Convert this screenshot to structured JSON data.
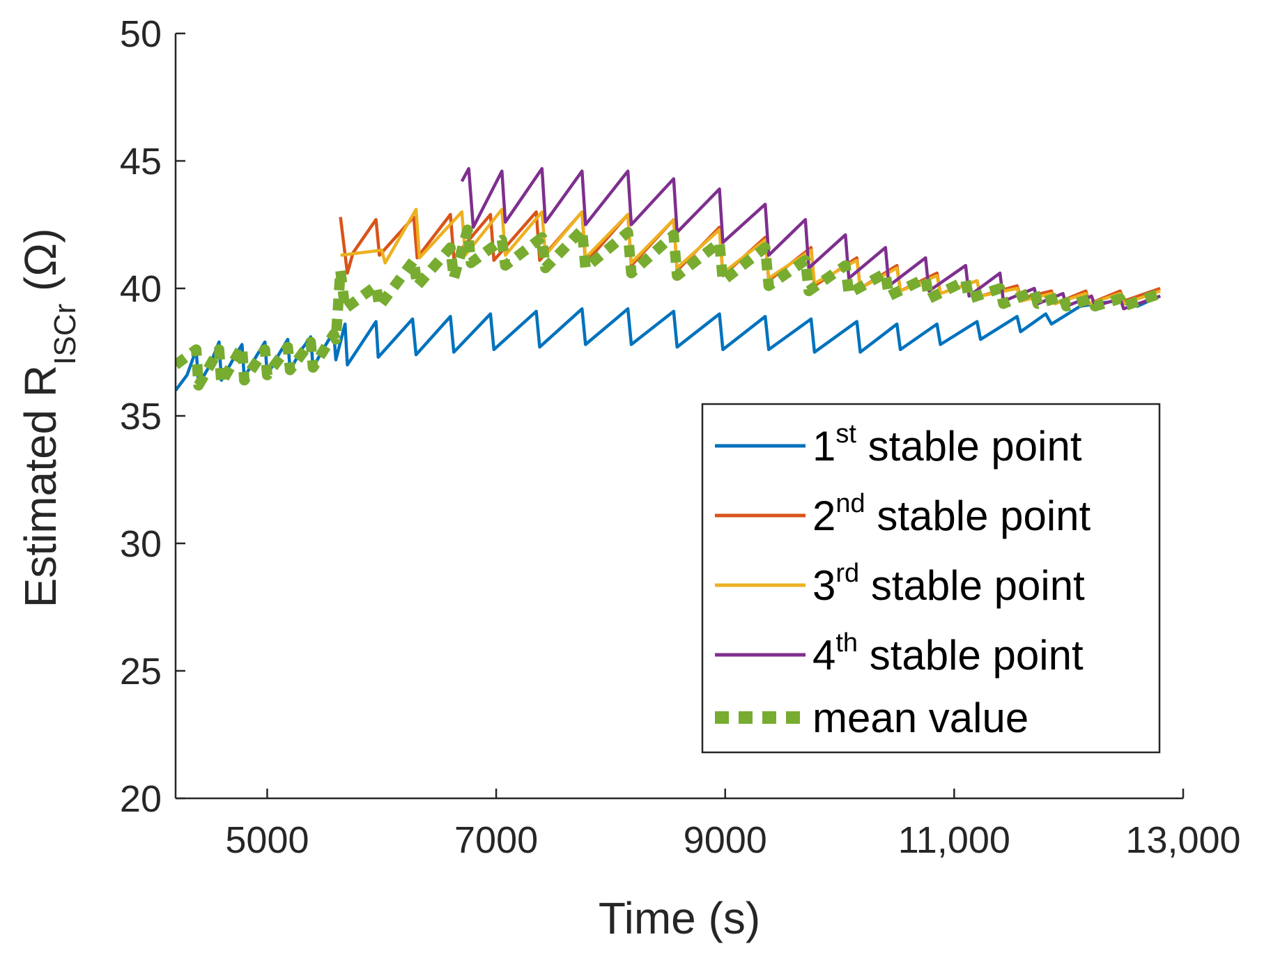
{
  "chart_data": {
    "type": "line",
    "title": "",
    "xlabel": "Time (s)",
    "ylabel": {
      "prefix": "Estimated R",
      "subscript": "ISCr",
      "suffix": " (Ω)"
    },
    "xlim": [
      4200,
      13000
    ],
    "ylim": [
      20,
      50
    ],
    "xticks": [
      5000,
      7000,
      9000,
      11000,
      13000
    ],
    "xtick_labels": [
      "5000",
      "7000",
      "9000",
      "11,000",
      "13,000"
    ],
    "yticks": [
      20,
      25,
      30,
      35,
      40,
      45,
      50
    ],
    "ytick_labels": [
      "20",
      "25",
      "30",
      "35",
      "40",
      "45",
      "50"
    ],
    "legend_position": "bottom-right",
    "legend_entries": [
      {
        "num": "1",
        "sup": "st",
        "text": " stable point"
      },
      {
        "num": "2",
        "sup": "nd",
        "text": " stable point"
      },
      {
        "num": "3",
        "sup": "rd",
        "text": " stable point"
      },
      {
        "num": "4",
        "sup": "th",
        "text": " stable point"
      },
      {
        "num": "",
        "sup": "",
        "text": "mean value"
      }
    ],
    "series": [
      {
        "name": "1st stable point",
        "color": "#0072BD",
        "style": "solid",
        "points": [
          [
            4200,
            36.0
          ],
          [
            4300,
            36.6
          ],
          [
            4380,
            37.6
          ],
          [
            4400,
            36.2
          ],
          [
            4500,
            37.0
          ],
          [
            4580,
            37.9
          ],
          [
            4600,
            36.4
          ],
          [
            4700,
            37.2
          ],
          [
            4780,
            37.8
          ],
          [
            4800,
            36.5
          ],
          [
            4900,
            37.3
          ],
          [
            4980,
            37.9
          ],
          [
            5000,
            36.6
          ],
          [
            5100,
            37.4
          ],
          [
            5180,
            38.0
          ],
          [
            5200,
            36.8
          ],
          [
            5300,
            37.6
          ],
          [
            5380,
            38.1
          ],
          [
            5400,
            36.9
          ],
          [
            5500,
            37.7
          ],
          [
            5580,
            38.3
          ],
          [
            5600,
            37.2
          ],
          [
            5680,
            38.6
          ],
          [
            5700,
            37.0
          ],
          [
            5950,
            38.7
          ],
          [
            5970,
            37.3
          ],
          [
            6270,
            38.8
          ],
          [
            6300,
            37.4
          ],
          [
            6600,
            38.9
          ],
          [
            6630,
            37.5
          ],
          [
            6950,
            39.0
          ],
          [
            6980,
            37.6
          ],
          [
            7350,
            39.1
          ],
          [
            7380,
            37.7
          ],
          [
            7750,
            39.2
          ],
          [
            7780,
            37.8
          ],
          [
            8150,
            39.2
          ],
          [
            8180,
            37.8
          ],
          [
            8550,
            39.1
          ],
          [
            8580,
            37.7
          ],
          [
            8950,
            39.0
          ],
          [
            8980,
            37.6
          ],
          [
            9350,
            38.9
          ],
          [
            9380,
            37.6
          ],
          [
            9750,
            38.8
          ],
          [
            9780,
            37.5
          ],
          [
            10150,
            38.7
          ],
          [
            10180,
            37.5
          ],
          [
            10500,
            38.6
          ],
          [
            10530,
            37.6
          ],
          [
            10850,
            38.6
          ],
          [
            10880,
            37.8
          ],
          [
            11200,
            38.7
          ],
          [
            11230,
            38.0
          ],
          [
            11550,
            38.9
          ],
          [
            11580,
            38.3
          ],
          [
            11800,
            39.0
          ],
          [
            11850,
            38.6
          ],
          [
            12100,
            39.3
          ],
          [
            12400,
            39.5
          ],
          [
            12600,
            39.3
          ],
          [
            12800,
            39.7
          ]
        ]
      },
      {
        "name": "2nd stable point",
        "color": "#D95319",
        "style": "solid",
        "points": [
          [
            5640,
            42.8
          ],
          [
            5700,
            40.6
          ],
          [
            5750,
            41.4
          ],
          [
            5950,
            42.7
          ],
          [
            5980,
            41.3
          ],
          [
            6280,
            42.8
          ],
          [
            6310,
            41.2
          ],
          [
            6600,
            42.9
          ],
          [
            6630,
            41.2
          ],
          [
            6950,
            42.9
          ],
          [
            6980,
            41.1
          ],
          [
            7350,
            43.0
          ],
          [
            7380,
            41.1
          ],
          [
            7750,
            43.0
          ],
          [
            7780,
            41.0
          ],
          [
            8150,
            42.9
          ],
          [
            8180,
            40.9
          ],
          [
            8550,
            42.7
          ],
          [
            8580,
            40.7
          ],
          [
            8950,
            42.4
          ],
          [
            8980,
            40.5
          ],
          [
            9350,
            42.0
          ],
          [
            9380,
            40.3
          ],
          [
            9750,
            41.6
          ],
          [
            9780,
            40.1
          ],
          [
            10150,
            41.2
          ],
          [
            10180,
            40.0
          ],
          [
            10500,
            40.9
          ],
          [
            10530,
            39.9
          ],
          [
            10850,
            40.6
          ],
          [
            10880,
            39.8
          ],
          [
            11200,
            40.3
          ],
          [
            11230,
            39.7
          ],
          [
            11550,
            40.1
          ],
          [
            11580,
            39.6
          ],
          [
            11850,
            39.9
          ],
          [
            11880,
            39.4
          ],
          [
            12150,
            39.9
          ],
          [
            12180,
            39.4
          ],
          [
            12450,
            39.9
          ],
          [
            12480,
            39.5
          ],
          [
            12800,
            40.0
          ]
        ]
      },
      {
        "name": "3rd stable point",
        "color": "#EDB120",
        "style": "solid",
        "points": [
          [
            5640,
            41.3
          ],
          [
            6000,
            41.5
          ],
          [
            6030,
            41.0
          ],
          [
            6300,
            43.1
          ],
          [
            6330,
            41.2
          ],
          [
            6700,
            43.0
          ],
          [
            6730,
            41.3
          ],
          [
            7050,
            43.1
          ],
          [
            7080,
            41.3
          ],
          [
            7400,
            43.0
          ],
          [
            7430,
            41.3
          ],
          [
            7750,
            43.0
          ],
          [
            7780,
            41.2
          ],
          [
            8150,
            42.9
          ],
          [
            8180,
            41.0
          ],
          [
            8550,
            42.7
          ],
          [
            8580,
            40.8
          ],
          [
            8950,
            42.3
          ],
          [
            8980,
            40.6
          ],
          [
            9350,
            41.9
          ],
          [
            9380,
            40.4
          ],
          [
            9750,
            41.5
          ],
          [
            9780,
            40.2
          ],
          [
            10150,
            41.1
          ],
          [
            10180,
            40.0
          ],
          [
            10500,
            40.8
          ],
          [
            10530,
            39.9
          ],
          [
            10850,
            40.5
          ],
          [
            10880,
            39.8
          ],
          [
            11200,
            40.3
          ],
          [
            11230,
            39.7
          ],
          [
            11550,
            40.0
          ],
          [
            11580,
            39.5
          ],
          [
            11850,
            39.8
          ],
          [
            11880,
            39.4
          ],
          [
            12150,
            39.8
          ],
          [
            12180,
            39.4
          ],
          [
            12450,
            39.8
          ],
          [
            12480,
            39.4
          ],
          [
            12800,
            39.9
          ]
        ]
      },
      {
        "name": "4th stable point",
        "color": "#7E2F8E",
        "style": "solid",
        "points": [
          [
            6700,
            44.2
          ],
          [
            6760,
            44.7
          ],
          [
            6800,
            42.4
          ],
          [
            7050,
            44.6
          ],
          [
            7080,
            42.6
          ],
          [
            7400,
            44.7
          ],
          [
            7430,
            42.6
          ],
          [
            7750,
            44.6
          ],
          [
            7780,
            42.5
          ],
          [
            8150,
            44.6
          ],
          [
            8180,
            42.5
          ],
          [
            8550,
            44.3
          ],
          [
            8580,
            42.2
          ],
          [
            8950,
            43.9
          ],
          [
            8980,
            41.8
          ],
          [
            9350,
            43.3
          ],
          [
            9380,
            41.3
          ],
          [
            9700,
            42.7
          ],
          [
            9730,
            40.8
          ],
          [
            10050,
            42.1
          ],
          [
            10080,
            40.4
          ],
          [
            10400,
            41.6
          ],
          [
            10430,
            40.1
          ],
          [
            10750,
            41.2
          ],
          [
            10780,
            39.9
          ],
          [
            11100,
            40.9
          ],
          [
            11130,
            39.7
          ],
          [
            11400,
            40.6
          ],
          [
            11430,
            39.5
          ],
          [
            11700,
            40.0
          ],
          [
            11730,
            39.4
          ],
          [
            11950,
            39.8
          ],
          [
            11980,
            39.3
          ],
          [
            12200,
            39.7
          ],
          [
            12230,
            39.3
          ],
          [
            12450,
            39.6
          ],
          [
            12480,
            39.2
          ],
          [
            12800,
            39.7
          ]
        ]
      },
      {
        "name": "mean value",
        "color": "#77AC30",
        "style": "dotted",
        "points": [
          [
            4200,
            37.0
          ],
          [
            4380,
            37.6
          ],
          [
            4400,
            36.2
          ],
          [
            4580,
            37.6
          ],
          [
            4600,
            36.3
          ],
          [
            4780,
            37.7
          ],
          [
            4800,
            36.4
          ],
          [
            4980,
            37.6
          ],
          [
            5000,
            36.6
          ],
          [
            5180,
            37.7
          ],
          [
            5200,
            36.8
          ],
          [
            5380,
            37.9
          ],
          [
            5400,
            36.9
          ],
          [
            5580,
            38.2
          ],
          [
            5600,
            38.0
          ],
          [
            5640,
            40.7
          ],
          [
            5680,
            39.2
          ],
          [
            5950,
            40.1
          ],
          [
            5980,
            39.3
          ],
          [
            6280,
            41.1
          ],
          [
            6310,
            40.1
          ],
          [
            6600,
            41.6
          ],
          [
            6630,
            40.4
          ],
          [
            6750,
            42.3
          ],
          [
            6780,
            41.0
          ],
          [
            7050,
            41.9
          ],
          [
            7080,
            40.9
          ],
          [
            7400,
            42.0
          ],
          [
            7430,
            40.8
          ],
          [
            7750,
            42.3
          ],
          [
            7780,
            40.8
          ],
          [
            8150,
            42.2
          ],
          [
            8180,
            40.6
          ],
          [
            8550,
            42.1
          ],
          [
            8580,
            40.5
          ],
          [
            8950,
            41.8
          ],
          [
            8980,
            40.3
          ],
          [
            9350,
            41.6
          ],
          [
            9380,
            40.1
          ],
          [
            9700,
            41.1
          ],
          [
            9730,
            39.9
          ],
          [
            10050,
            40.9
          ],
          [
            10080,
            39.8
          ],
          [
            10400,
            40.6
          ],
          [
            10430,
            39.7
          ],
          [
            10750,
            40.4
          ],
          [
            10780,
            39.6
          ],
          [
            11100,
            40.3
          ],
          [
            11130,
            39.6
          ],
          [
            11400,
            40.0
          ],
          [
            11430,
            39.4
          ],
          [
            11700,
            39.9
          ],
          [
            11730,
            39.4
          ],
          [
            11950,
            39.7
          ],
          [
            11980,
            39.3
          ],
          [
            12200,
            39.6
          ],
          [
            12230,
            39.3
          ],
          [
            12450,
            39.6
          ],
          [
            12480,
            39.3
          ],
          [
            12800,
            39.8
          ]
        ]
      }
    ]
  }
}
